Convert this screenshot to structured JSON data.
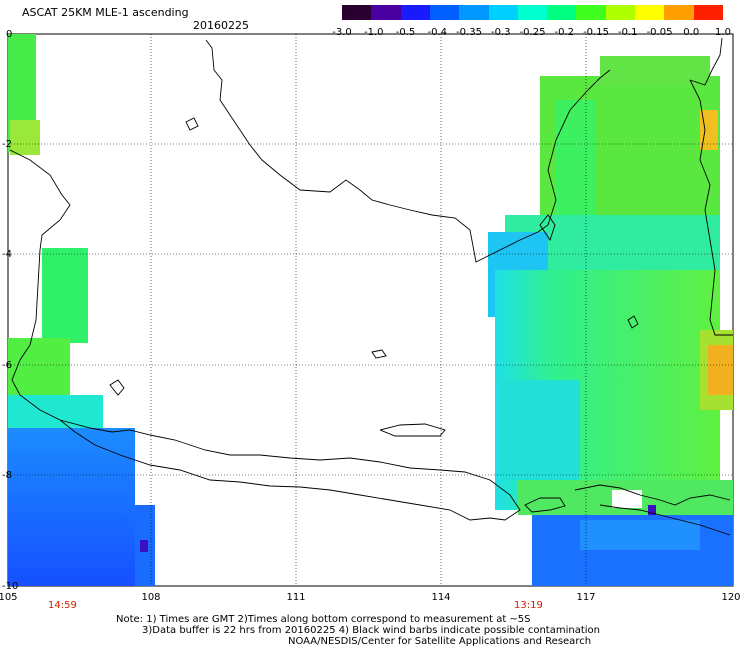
{
  "header": {
    "title": "ASCAT 25KM MLE-1 ascending",
    "date": "20160225"
  },
  "colorbar": {
    "labels": [
      "-3.0",
      "-1.0",
      "-0.5",
      "-0.4",
      "-0.35",
      "-0.3",
      "-0.25",
      "-0.2",
      "-0.15",
      "-0.1",
      "-0.05",
      "0.0",
      "1.0"
    ],
    "colors": [
      "#2a0030",
      "#4a00a0",
      "#1a1aff",
      "#0060ff",
      "#0098ff",
      "#00d0ff",
      "#00ffd0",
      "#00ff80",
      "#40ff20",
      "#b0ff00",
      "#ffff00",
      "#ffa000",
      "#ff2000"
    ]
  },
  "axes": {
    "x_labels": [
      "105",
      "108",
      "111",
      "114",
      "117",
      "120"
    ],
    "y_labels": [
      "0",
      "-2",
      "-4",
      "-6",
      "-8",
      "-10"
    ]
  },
  "pass_times": [
    "14:59",
    "13:19"
  ],
  "notes": [
    "Note: 1) Times are GMT 2)Times along bottom correspond to measurement at ~5S",
    "3)Data buffer is 22 hrs from 20160225 4) Black wind barbs indicate possible contamination",
    "NOAA/NESDIS/Center for Satellite Applications and Research"
  ]
}
